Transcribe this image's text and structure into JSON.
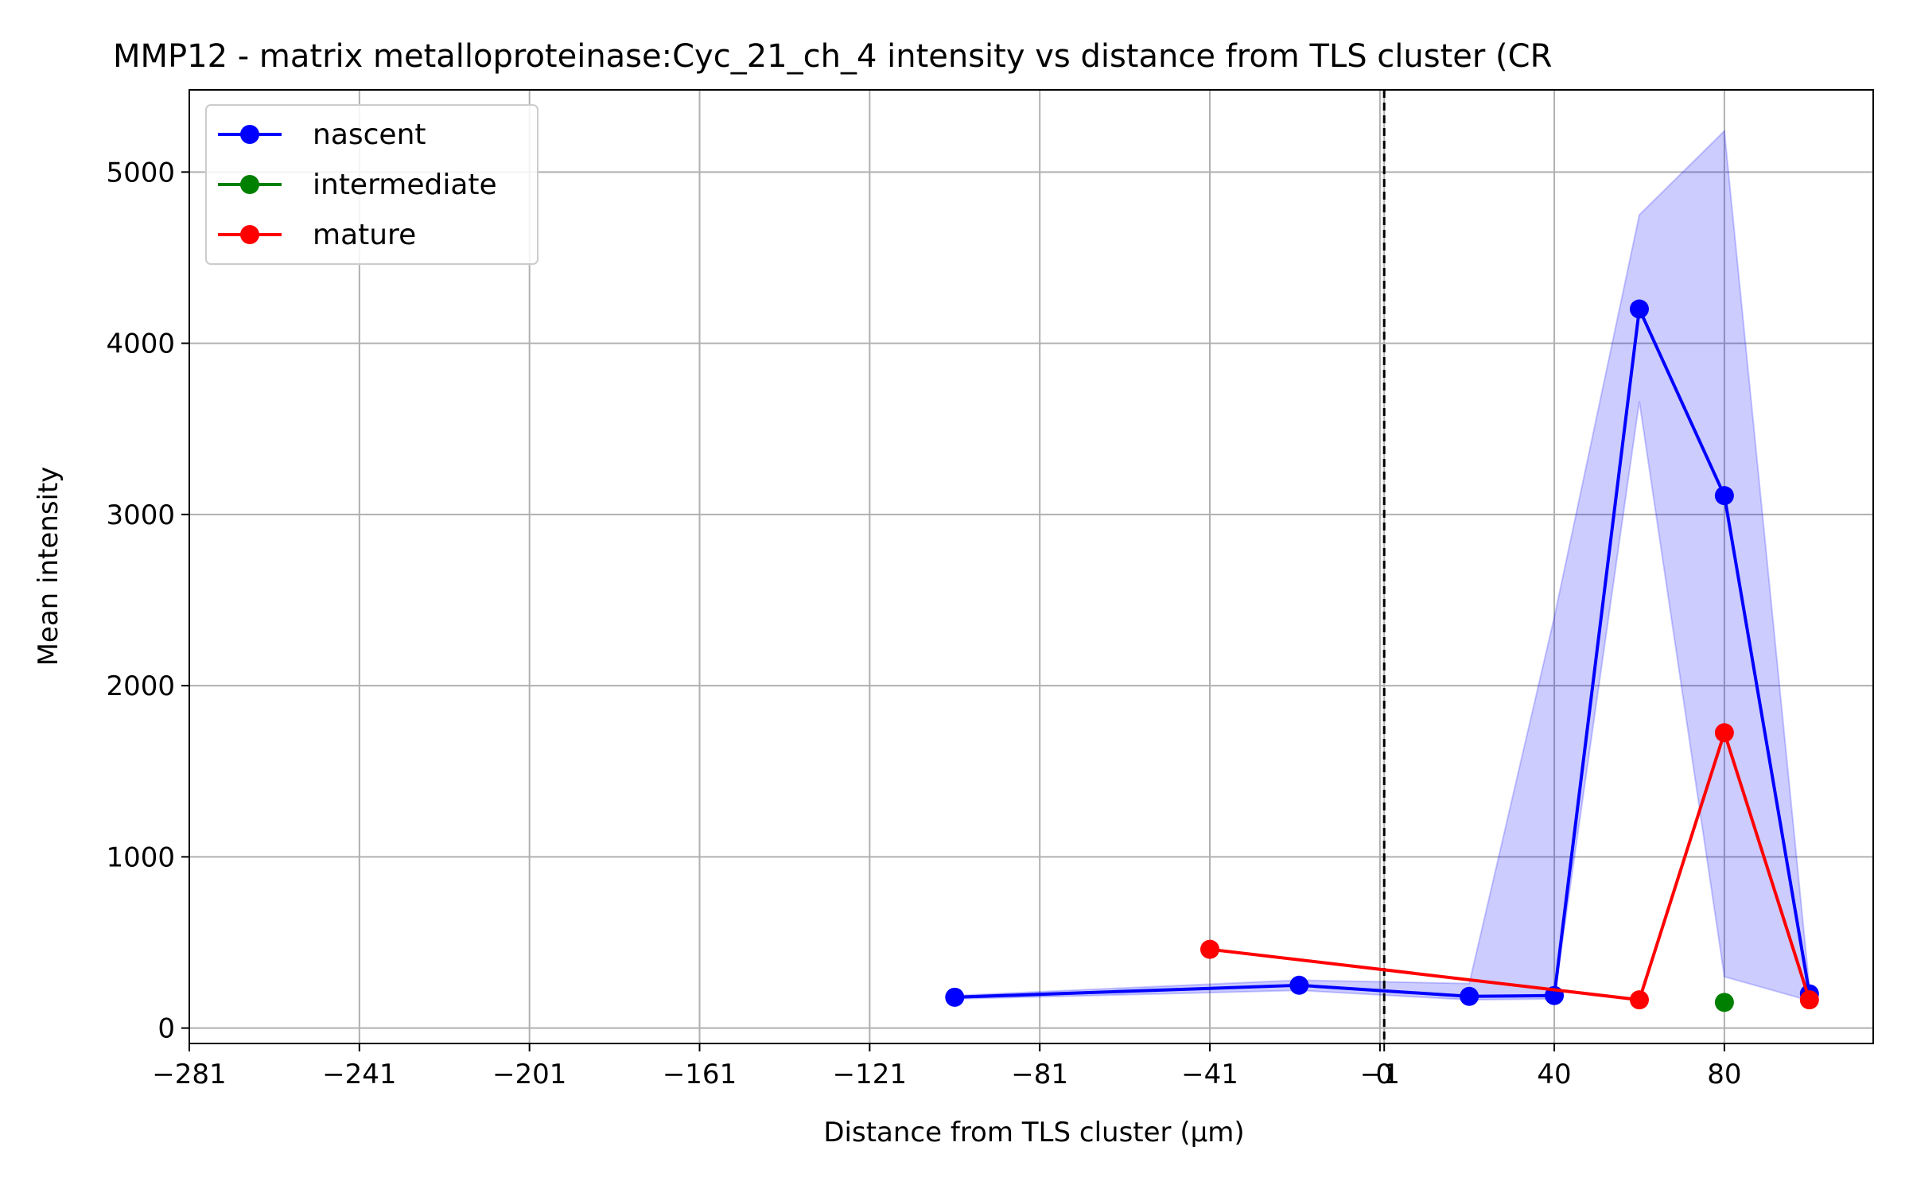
{
  "chart_data": {
    "type": "line",
    "title": "MMP12 - matrix metalloproteinase:Cyc_21_ch_4 intensity vs distance from TLS cluster (CR",
    "xlabel": "Distance from TLS cluster (μm)",
    "ylabel": "Mean intensity",
    "xlim": [
      -281,
      115
    ],
    "ylim": [
      -90,
      5480
    ],
    "x_ticks": [
      -281,
      -241,
      -201,
      -161,
      -121,
      -81,
      -41,
      -1,
      0,
      40,
      80
    ],
    "x_tick_labels": [
      "−281",
      "−241",
      "−201",
      "−161",
      "−121",
      "−81",
      "−41",
      "−1",
      "0",
      "40",
      "80"
    ],
    "y_ticks": [
      0,
      1000,
      2000,
      3000,
      4000,
      5000
    ],
    "y_tick_labels": [
      "0",
      "1000",
      "2000",
      "3000",
      "4000",
      "5000"
    ],
    "grid": true,
    "legend_position": "upper-left",
    "reference_line_x": 0,
    "series": [
      {
        "name": "nascent",
        "color": "#0000ff",
        "x": [
          -101,
          -20,
          20,
          40,
          60,
          80,
          100
        ],
        "y": [
          180,
          250,
          185,
          190,
          4200,
          3110,
          200
        ],
        "band": {
          "x": [
            -101,
            -20,
            20,
            40,
            60,
            80,
            100
          ],
          "lower": [
            170,
            220,
            165,
            170,
            3660,
            300,
            160
          ],
          "upper": [
            190,
            280,
            260,
            2400,
            4750,
            5240,
            240
          ]
        }
      },
      {
        "name": "intermediate",
        "color": "#008000",
        "x": [
          80
        ],
        "y": [
          150
        ]
      },
      {
        "name": "mature",
        "color": "#ff0000",
        "x": [
          -41,
          60,
          80,
          100
        ],
        "y": [
          460,
          165,
          1725,
          165
        ]
      }
    ]
  }
}
